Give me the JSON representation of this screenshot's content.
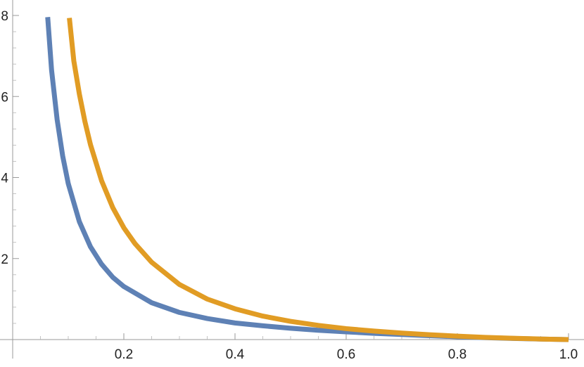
{
  "chart_data": {
    "type": "line",
    "title": "",
    "xlabel": "",
    "ylabel": "",
    "xlim": [
      0.0,
      1.0
    ],
    "ylim": [
      0,
      8
    ],
    "grid": false,
    "x_ticks": [
      0.2,
      0.4,
      0.6,
      0.8,
      1.0
    ],
    "x_tick_labels": [
      "0.2",
      "0.4",
      "0.6",
      "0.8",
      "1.0"
    ],
    "x_minor_ticks": [
      0.05,
      0.1,
      0.15,
      0.25,
      0.3,
      0.35,
      0.45,
      0.5,
      0.55,
      0.65,
      0.7,
      0.75,
      0.85,
      0.9,
      0.95
    ],
    "y_ticks": [
      2,
      4,
      6,
      8
    ],
    "y_tick_labels": [
      "2",
      "4",
      "6",
      "8"
    ],
    "y_minor_ticks": [
      0.4,
      0.8,
      1.2,
      1.6,
      2.4,
      2.8,
      3.2,
      3.6,
      4.4,
      4.8,
      5.2,
      5.6,
      6.4,
      6.8,
      7.2,
      7.6
    ],
    "series": [
      {
        "color": "#5e81b5",
        "x": [
          0.063,
          0.07,
          0.08,
          0.09,
          0.1,
          0.12,
          0.14,
          0.16,
          0.18,
          0.2,
          0.25,
          0.3,
          0.35,
          0.4,
          0.45,
          0.5,
          0.55,
          0.6,
          0.65,
          0.7,
          0.75,
          0.8,
          0.85,
          0.9,
          0.95,
          1.0
        ],
        "y": [
          7.96,
          6.65,
          5.43,
          4.53,
          3.85,
          2.91,
          2.29,
          1.86,
          1.54,
          1.31,
          0.91,
          0.67,
          0.52,
          0.41,
          0.34,
          0.28,
          0.23,
          0.19,
          0.155,
          0.125,
          0.095,
          0.07,
          0.048,
          0.028,
          0.012,
          0.0
        ]
      },
      {
        "color": "#e19c24",
        "x": [
          0.102,
          0.11,
          0.12,
          0.13,
          0.14,
          0.16,
          0.18,
          0.2,
          0.22,
          0.25,
          0.3,
          0.35,
          0.4,
          0.45,
          0.5,
          0.55,
          0.6,
          0.65,
          0.7,
          0.75,
          0.8,
          0.85,
          0.9,
          0.95,
          1.0
        ],
        "y": [
          7.94,
          6.88,
          6.06,
          5.38,
          4.81,
          3.92,
          3.26,
          2.76,
          2.37,
          1.91,
          1.36,
          1.0,
          0.76,
          0.58,
          0.45,
          0.35,
          0.27,
          0.21,
          0.16,
          0.12,
          0.085,
          0.055,
          0.032,
          0.014,
          0.0
        ]
      }
    ]
  }
}
